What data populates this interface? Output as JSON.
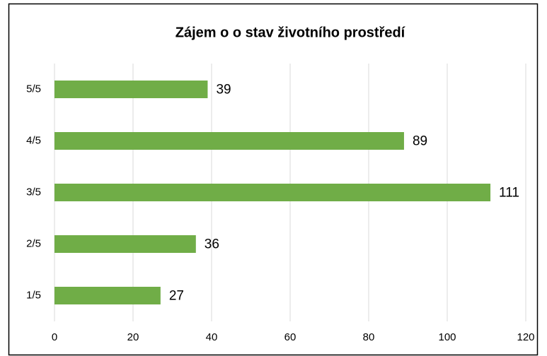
{
  "chart_data": {
    "type": "hbar",
    "title": "Zájem o o stav životního prostředí",
    "categories": [
      "1/5",
      "2/5",
      "3/5",
      "4/5",
      "5/5"
    ],
    "values": [
      27,
      36,
      111,
      89,
      39
    ],
    "color": "#70ad47",
    "xlim": [
      0,
      120
    ],
    "xticks": [
      0,
      20,
      40,
      60,
      80,
      100,
      120
    ],
    "grid": true
  }
}
